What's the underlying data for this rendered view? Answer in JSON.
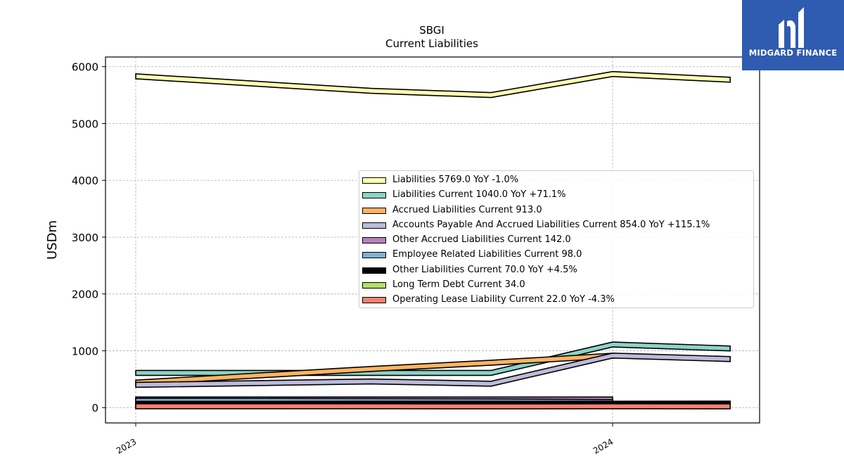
{
  "chart_data": {
    "type": "area",
    "title": "SBGI",
    "subtitle": "Current  Liabilities",
    "ylabel": "USDm",
    "xlabel": "",
    "x_ticks": [
      "2023",
      "2024"
    ],
    "y_ticks": [
      "0",
      "1000",
      "2000",
      "3000",
      "4000",
      "5000",
      "6000"
    ],
    "ylim": [
      -270,
      6170
    ],
    "grid": true,
    "legend_position": "center-right",
    "dates": [
      "2023-01-01",
      "2023-06-30",
      "2023-09-30",
      "2024-01-01",
      "2024-03-31"
    ],
    "series": [
      {
        "name": "Liabilities",
        "legend": "Liabilities  5769.0 YoY -1.0%",
        "color": "#ffffb3",
        "values": [
          5830,
          5575,
          5500,
          5870,
          5770
        ]
      },
      {
        "name": "Liabilities Current",
        "legend": "Liabilities Current  1040.0 YoY +71.1%",
        "color": "#8dd3c7",
        "values": [
          610,
          610,
          610,
          1110,
          1040
        ]
      },
      {
        "name": "Accrued Liabilities Current",
        "legend": "Accrued Liabilities Current  913.0",
        "color": "#fdb462",
        "values": [
          440,
          680,
          790,
          913,
          null
        ]
      },
      {
        "name": "Accounts Payable And Accrued Liabilities Current",
        "legend": "Accounts Payable And Accrued Liabilities Current  854.0 YoY +115.1%",
        "color": "#bebada",
        "values": [
          400,
          460,
          420,
          915,
          854
        ]
      },
      {
        "name": "Other Accrued Liabilities Current",
        "legend": "Other Accrued Liabilities Current  142.0",
        "color": "#bc80bd",
        "values": [
          142,
          142,
          142,
          142,
          null
        ]
      },
      {
        "name": "Employee Related Liabilities Current",
        "legend": "Employee Related Liabilities Current  98.0",
        "color": "#80b1d3",
        "values": [
          120,
          115,
          110,
          98,
          null
        ]
      },
      {
        "name": "Other Liabilities Current",
        "legend": "Other Liabilities Current  70.0 YoY +4.5%",
        "color": "#000000",
        "values": [
          67,
          68,
          68,
          69,
          70
        ]
      },
      {
        "name": "Long Term Debt Current",
        "legend": "Long Term Debt Current  34.0",
        "color": "#b3de69",
        "values": [
          34,
          34,
          34,
          34,
          null
        ]
      },
      {
        "name": "Operating Lease Liability Current",
        "legend": "Operating Lease Liability Current  22.0 YoY -4.3%",
        "color": "#fb8072",
        "values": [
          23,
          23,
          22,
          23,
          22
        ]
      }
    ]
  },
  "logo": {
    "name": "MIDGARD FINANCE",
    "color": "#2f5bb0"
  }
}
